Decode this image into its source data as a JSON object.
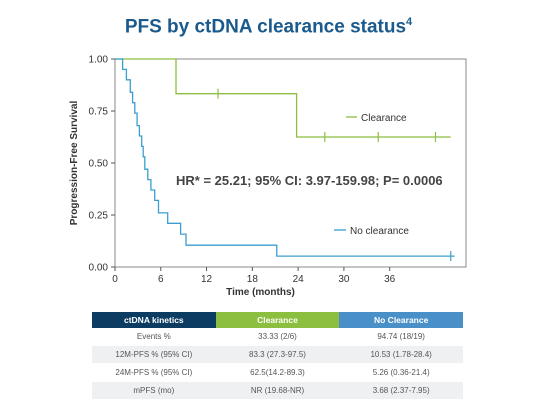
{
  "title": "PFS by ctDNA clearance status",
  "title_sup": "4",
  "colors": {
    "clearance": "#8cbf3f",
    "no_clearance": "#3a9fd0",
    "title": "#1a5a8c",
    "header_kinetics": "#0d3c63",
    "header_clearance": "#8cbf3f",
    "header_noclearance": "#4a90c8"
  },
  "chart_data": {
    "type": "line",
    "title": "PFS by ctDNA clearance status",
    "xlabel": "Time (months)",
    "ylabel": "Progression-Free Survival",
    "xlim": [
      0,
      46
    ],
    "ylim": [
      0,
      1
    ],
    "xticks": [
      0,
      6,
      12,
      18,
      24,
      30,
      36
    ],
    "yticks": [
      0.0,
      0.25,
      0.5,
      0.75,
      1.0
    ],
    "ytick_labels": [
      "0.00",
      "0.25",
      "0.50",
      "0.75",
      "1.00"
    ],
    "annotation": "HR* = 25.21; 95% CI: 3.97-159.98; P= 0.0006",
    "series": [
      {
        "name": "Clearance",
        "color": "#8cbf3f",
        "steps": [
          [
            0,
            1.0
          ],
          [
            8,
            1.0
          ],
          [
            8,
            0.833
          ],
          [
            23.8,
            0.833
          ],
          [
            23.8,
            0.625
          ],
          [
            44,
            0.625
          ]
        ],
        "censor": [
          [
            13.5,
            0.833
          ],
          [
            27.5,
            0.625
          ],
          [
            34.5,
            0.625
          ],
          [
            42,
            0.625
          ]
        ]
      },
      {
        "name": "No clearance",
        "color": "#3a9fd0",
        "steps": [
          [
            0,
            1.0
          ],
          [
            1.0,
            1.0
          ],
          [
            1.0,
            0.95
          ],
          [
            1.5,
            0.95
          ],
          [
            1.5,
            0.9
          ],
          [
            2.0,
            0.9
          ],
          [
            2.0,
            0.84
          ],
          [
            2.3,
            0.84
          ],
          [
            2.3,
            0.79
          ],
          [
            2.6,
            0.79
          ],
          [
            2.6,
            0.74
          ],
          [
            2.9,
            0.74
          ],
          [
            2.9,
            0.68
          ],
          [
            3.2,
            0.68
          ],
          [
            3.2,
            0.63
          ],
          [
            3.5,
            0.63
          ],
          [
            3.5,
            0.58
          ],
          [
            3.7,
            0.58
          ],
          [
            3.7,
            0.53
          ],
          [
            3.9,
            0.53
          ],
          [
            3.9,
            0.47
          ],
          [
            4.3,
            0.47
          ],
          [
            4.3,
            0.42
          ],
          [
            4.7,
            0.42
          ],
          [
            4.7,
            0.37
          ],
          [
            5.2,
            0.37
          ],
          [
            5.2,
            0.32
          ],
          [
            5.7,
            0.32
          ],
          [
            5.7,
            0.26
          ],
          [
            6.9,
            0.26
          ],
          [
            6.9,
            0.21
          ],
          [
            8.6,
            0.21
          ],
          [
            8.6,
            0.158
          ],
          [
            9.3,
            0.158
          ],
          [
            9.3,
            0.105
          ],
          [
            21.2,
            0.105
          ],
          [
            21.2,
            0.0526
          ],
          [
            44.5,
            0.0526
          ]
        ],
        "censor": [
          [
            44,
            0.0526
          ]
        ]
      }
    ]
  },
  "legend": {
    "clearance": "Clearance",
    "no_clearance": "No clearance"
  },
  "table": {
    "headers": [
      "ctDNA kinetics",
      "Clearance",
      "No Clearance"
    ],
    "rows": [
      [
        "Events %",
        "33.33 (2/6)",
        "94.74 (18/19)"
      ],
      [
        "12M-PFS % (95% CI)",
        "83.3 (27.3-97.5)",
        "10.53 (1.78-28.4)"
      ],
      [
        "24M-PFS % (95% CI)",
        "62.5(14.2-89.3)",
        "5.26 (0.36-21.4)"
      ],
      [
        "mPFS (mo)",
        "NR (19.68-NR)",
        "3.68 (2.37-7.95)"
      ]
    ]
  }
}
